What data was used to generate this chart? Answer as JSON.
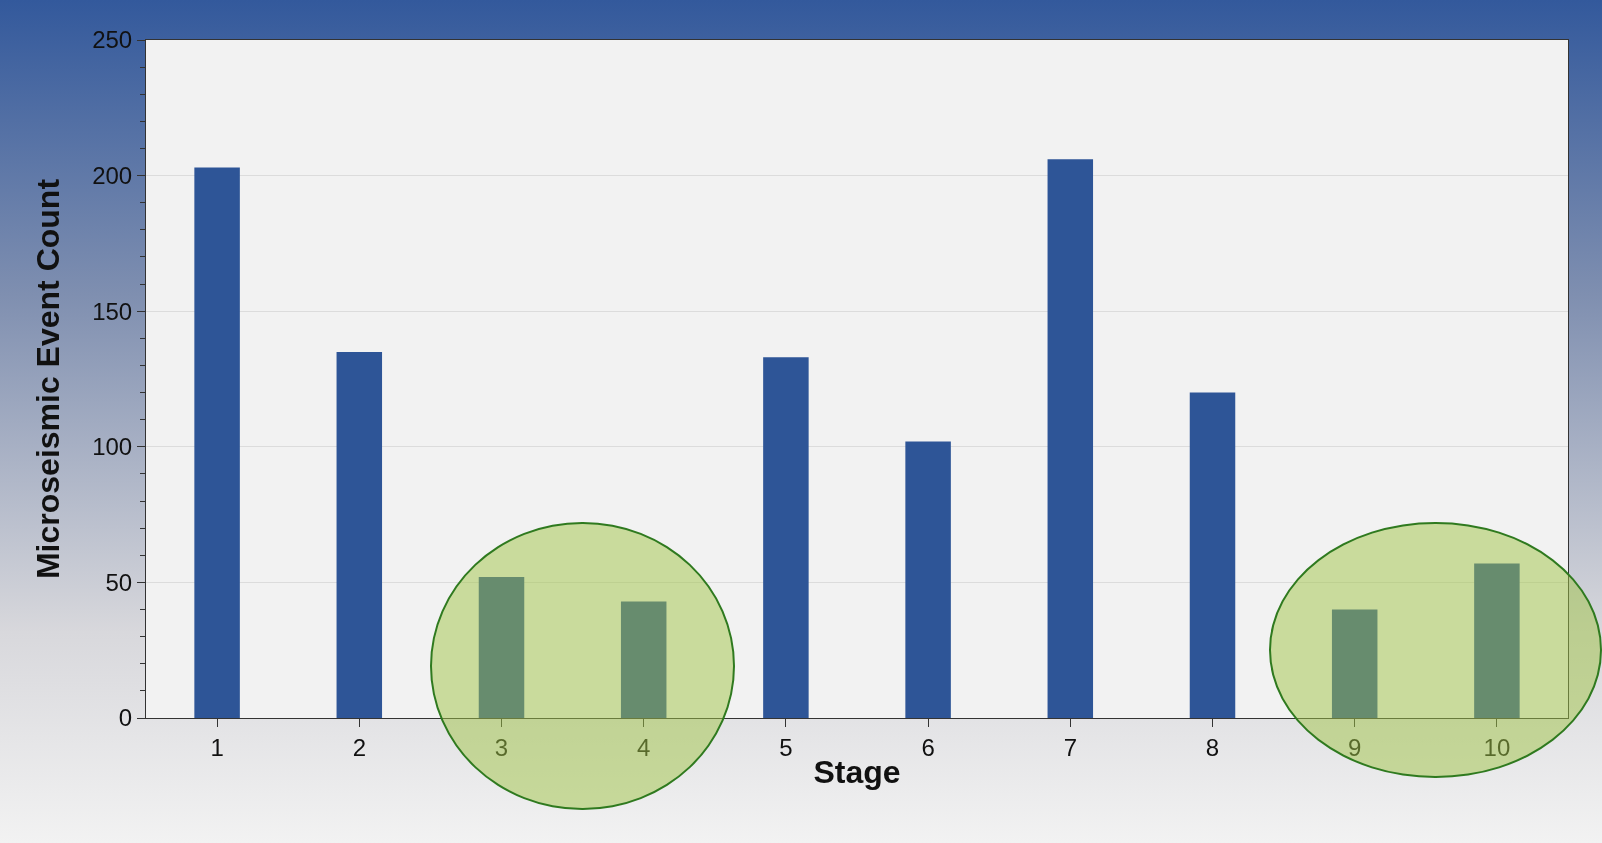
{
  "chart_data": {
    "type": "bar",
    "xlabel": "Stage",
    "ylabel": "Microseismic Event Count",
    "categories": [
      "1",
      "2",
      "3",
      "4",
      "5",
      "6",
      "7",
      "8",
      "9",
      "10"
    ],
    "values": [
      203,
      135,
      52,
      43,
      133,
      102,
      206,
      120,
      40,
      57
    ],
    "color": "#2e5597",
    "ylim": [
      0,
      250
    ],
    "yticks": [
      0,
      50,
      100,
      150,
      200,
      250
    ],
    "grid": "y"
  }
}
